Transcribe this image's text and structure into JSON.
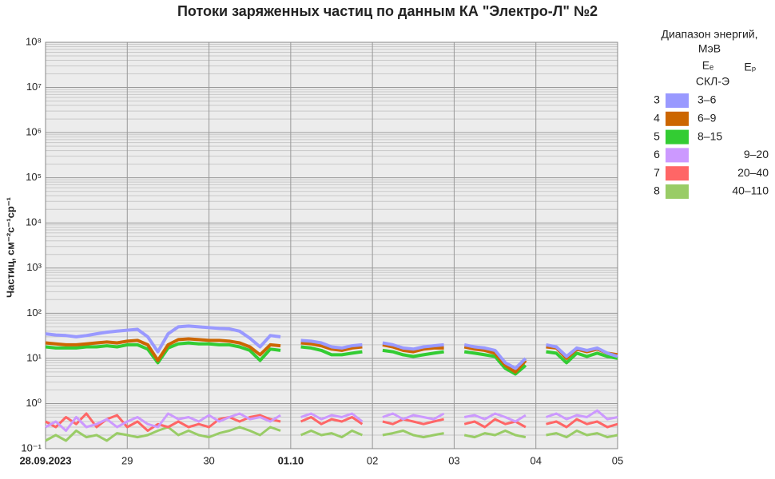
{
  "chart_data": {
    "type": "line",
    "title": "Потоки заряженных частиц по данным КА \"Электро-Л\" №2",
    "ylabel": "Частиц, см⁻²с⁻¹ср⁻¹",
    "log_y": true,
    "grid": true,
    "legend": {
      "title": [
        "Диапазон энергий,",
        "МэВ"
      ],
      "col_e": "Eₑ",
      "col_p": "Eₚ",
      "instrument": "СКЛ-Э"
    },
    "x": [
      0,
      3,
      6,
      9,
      12,
      15,
      18,
      21,
      24,
      27,
      30,
      33,
      36,
      39,
      42,
      45,
      48,
      51,
      54,
      57,
      60,
      63,
      66,
      69,
      72,
      75,
      78,
      81,
      84,
      87,
      90,
      93,
      96,
      99,
      102,
      105,
      108,
      111,
      114,
      117,
      120,
      123,
      126,
      129,
      132,
      135,
      138,
      141,
      144,
      147,
      150,
      153,
      156,
      159,
      162,
      165,
      168
    ],
    "xlim": [
      0,
      168
    ],
    "xticks": [
      {
        "value": 0,
        "label": "28.09.2023",
        "bold": true
      },
      {
        "value": 24,
        "label": "29"
      },
      {
        "value": 48,
        "label": "30"
      },
      {
        "value": 72,
        "label": "01.10",
        "bold": true
      },
      {
        "value": 96,
        "label": "02"
      },
      {
        "value": 120,
        "label": "03"
      },
      {
        "value": 144,
        "label": "04"
      },
      {
        "value": 168,
        "label": "05"
      }
    ],
    "ylim": [
      0.1,
      100000000
    ],
    "yticks": [
      {
        "value": 0.1,
        "label": "10⁻¹"
      },
      {
        "value": 1,
        "label": "10⁰"
      },
      {
        "value": 10,
        "label": "10¹"
      },
      {
        "value": 100,
        "label": "10²"
      },
      {
        "value": 1000,
        "label": "10³"
      },
      {
        "value": 10000,
        "label": "10⁴"
      },
      {
        "value": 100000,
        "label": "10⁵"
      },
      {
        "value": 1000000,
        "label": "10⁶"
      },
      {
        "value": 10000000,
        "label": "10⁷"
      },
      {
        "value": 100000000,
        "label": "10⁸"
      }
    ],
    "series": [
      {
        "channel": "3",
        "name": "3–6",
        "particle": "e",
        "color": "#9999ff",
        "values": [
          35,
          33,
          32,
          30,
          32,
          35,
          38,
          40,
          42,
          44,
          30,
          14,
          35,
          50,
          52,
          50,
          48,
          46,
          45,
          40,
          28,
          18,
          32,
          30,
          null,
          25,
          24,
          22,
          18,
          17,
          19,
          20,
          null,
          22,
          20,
          17,
          16,
          18,
          19,
          20,
          null,
          20,
          18,
          17,
          15,
          8,
          6,
          10,
          null,
          20,
          18,
          11,
          17,
          15,
          17,
          13,
          11
        ]
      },
      {
        "channel": "4",
        "name": "6–9",
        "particle": "e",
        "color": "#cc6600",
        "values": [
          22,
          21,
          20,
          20,
          21,
          22,
          23,
          22,
          24,
          25,
          20,
          9,
          20,
          26,
          27,
          26,
          25,
          25,
          24,
          22,
          18,
          12,
          20,
          19,
          null,
          22,
          21,
          19,
          16,
          15,
          17,
          18,
          null,
          20,
          18,
          15,
          14,
          16,
          17,
          17,
          null,
          18,
          16,
          15,
          13,
          7,
          5,
          9,
          null,
          18,
          17,
          10,
          16,
          14,
          16,
          13,
          12
        ]
      },
      {
        "channel": "5",
        "name": "8–15",
        "particle": "e",
        "color": "#33cc33",
        "values": [
          18,
          17,
          17,
          17,
          18,
          18,
          19,
          18,
          20,
          20,
          16,
          8,
          17,
          21,
          22,
          21,
          21,
          20,
          20,
          18,
          15,
          9,
          16,
          15,
          null,
          18,
          17,
          15,
          12,
          12,
          13,
          14,
          null,
          15,
          14,
          12,
          11,
          12,
          13,
          14,
          null,
          14,
          13,
          12,
          11,
          6,
          4.5,
          7,
          null,
          14,
          13,
          8,
          13,
          11,
          13,
          11,
          10
        ]
      },
      {
        "channel": "6",
        "name": "9–20",
        "particle": "p",
        "color": "#cc99ff",
        "values": [
          0.3,
          0.4,
          0.25,
          0.5,
          0.3,
          0.35,
          0.45,
          0.3,
          0.4,
          0.5,
          0.35,
          0.3,
          0.6,
          0.45,
          0.5,
          0.4,
          0.55,
          0.4,
          0.5,
          0.6,
          0.45,
          0.5,
          0.4,
          0.55,
          null,
          0.5,
          0.6,
          0.45,
          0.55,
          0.5,
          0.6,
          0.4,
          null,
          0.5,
          0.6,
          0.45,
          0.55,
          0.5,
          0.45,
          0.6,
          null,
          0.5,
          0.55,
          0.45,
          0.6,
          0.5,
          0.4,
          0.55,
          null,
          0.5,
          0.6,
          0.45,
          0.55,
          0.5,
          0.7,
          0.45,
          0.5
        ]
      },
      {
        "channel": "7",
        "name": "20–40",
        "particle": "p",
        "color": "#ff6666",
        "values": [
          0.4,
          0.3,
          0.5,
          0.35,
          0.6,
          0.3,
          0.45,
          0.55,
          0.3,
          0.4,
          0.25,
          0.35,
          0.3,
          0.4,
          0.3,
          0.35,
          0.3,
          0.45,
          0.5,
          0.4,
          0.5,
          0.55,
          0.45,
          0.4,
          null,
          0.4,
          0.5,
          0.35,
          0.45,
          0.4,
          0.5,
          0.35,
          null,
          0.4,
          0.35,
          0.45,
          0.4,
          0.35,
          0.4,
          0.45,
          null,
          0.35,
          0.4,
          0.3,
          0.45,
          0.35,
          0.4,
          0.3,
          null,
          0.35,
          0.4,
          0.3,
          0.45,
          0.35,
          0.4,
          0.3,
          0.35
        ]
      },
      {
        "channel": "8",
        "name": "40–110",
        "particle": "p",
        "color": "#99cc66",
        "values": [
          0.15,
          0.2,
          0.15,
          0.25,
          0.18,
          0.2,
          0.15,
          0.22,
          0.2,
          0.18,
          0.2,
          0.25,
          0.3,
          0.2,
          0.25,
          0.2,
          0.18,
          0.22,
          0.25,
          0.3,
          0.25,
          0.2,
          0.3,
          0.25,
          null,
          0.2,
          0.25,
          0.2,
          0.22,
          0.18,
          0.25,
          0.2,
          null,
          0.2,
          0.22,
          0.25,
          0.2,
          0.18,
          0.2,
          0.22,
          null,
          0.2,
          0.18,
          0.22,
          0.2,
          0.25,
          0.2,
          0.18,
          null,
          0.2,
          0.22,
          0.18,
          0.25,
          0.2,
          0.22,
          0.18,
          0.2
        ]
      }
    ]
  }
}
